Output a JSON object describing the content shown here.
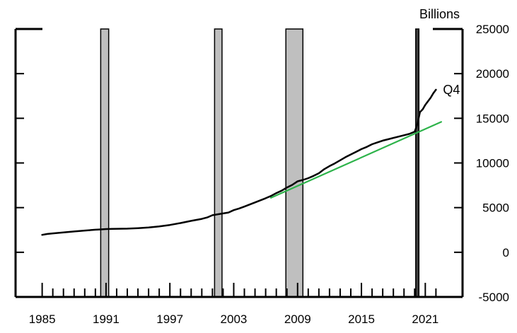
{
  "chart_data": {
    "type": "line",
    "title": "",
    "xlabel": "",
    "ylabel": "",
    "y_unit_label": "Billions",
    "x_range": [
      1982.5,
      2024.5
    ],
    "ylim": [
      -5000,
      25000
    ],
    "y_ticks": [
      -5000,
      0,
      5000,
      10000,
      15000,
      20000,
      25000
    ],
    "x_tick_labels": [
      "1985",
      "1991",
      "1997",
      "2003",
      "2009",
      "2015",
      "2021"
    ],
    "x_major_ticks": [
      1985,
      1991,
      1997,
      2003,
      2009,
      2015,
      2021
    ],
    "x_minor_ticks": [
      1986,
      1987,
      1988,
      1989,
      1990,
      1992,
      1993,
      1994,
      1995,
      1996,
      1998,
      1999,
      2000,
      2001,
      2002,
      2004,
      2005,
      2006,
      2007,
      2008,
      2010,
      2011,
      2012,
      2013,
      2014,
      2016,
      2017,
      2018,
      2019,
      2020,
      2022
    ],
    "grid": false,
    "legend": "none",
    "recession_shading": [
      {
        "start": 1990.5,
        "end": 1991.25,
        "color": "#bfbfbf"
      },
      {
        "start": 2001.2,
        "end": 2001.9,
        "color": "#bfbfbf"
      },
      {
        "start": 2007.9,
        "end": 2009.5,
        "color": "#bfbfbf"
      },
      {
        "start": 2020.1,
        "end": 2020.4,
        "color": "#404040"
      }
    ],
    "series": [
      {
        "name": "",
        "end_label": "Q4",
        "color": "#000000",
        "points": [
          [
            1985.0,
            1950
          ],
          [
            1985.5,
            2050
          ],
          [
            1986.0,
            2120
          ],
          [
            1987.0,
            2230
          ],
          [
            1988.0,
            2330
          ],
          [
            1989.0,
            2430
          ],
          [
            1990.0,
            2530
          ],
          [
            1990.5,
            2560
          ],
          [
            1991.0,
            2600
          ],
          [
            1991.5,
            2620
          ],
          [
            1992.0,
            2630
          ],
          [
            1993.0,
            2650
          ],
          [
            1994.0,
            2700
          ],
          [
            1995.0,
            2780
          ],
          [
            1996.0,
            2900
          ],
          [
            1997.0,
            3060
          ],
          [
            1998.0,
            3270
          ],
          [
            1999.0,
            3520
          ],
          [
            2000.0,
            3740
          ],
          [
            2000.5,
            3900
          ],
          [
            2001.0,
            4150
          ],
          [
            2001.5,
            4250
          ],
          [
            2002.0,
            4350
          ],
          [
            2002.5,
            4450
          ],
          [
            2003.0,
            4720
          ],
          [
            2003.5,
            4900
          ],
          [
            2004.0,
            5120
          ],
          [
            2005.0,
            5580
          ],
          [
            2006.0,
            6050
          ],
          [
            2006.5,
            6300
          ],
          [
            2007.0,
            6630
          ],
          [
            2007.5,
            6900
          ],
          [
            2008.0,
            7250
          ],
          [
            2008.5,
            7550
          ],
          [
            2009.0,
            7950
          ],
          [
            2009.5,
            8100
          ],
          [
            2010.0,
            8300
          ],
          [
            2010.5,
            8550
          ],
          [
            2011.0,
            8850
          ],
          [
            2011.5,
            9300
          ],
          [
            2012.0,
            9650
          ],
          [
            2012.5,
            9950
          ],
          [
            2013.0,
            10300
          ],
          [
            2013.5,
            10650
          ],
          [
            2014.0,
            10950
          ],
          [
            2014.5,
            11250
          ],
          [
            2015.0,
            11550
          ],
          [
            2015.5,
            11800
          ],
          [
            2016.0,
            12100
          ],
          [
            2016.5,
            12300
          ],
          [
            2017.0,
            12500
          ],
          [
            2017.5,
            12650
          ],
          [
            2018.0,
            12800
          ],
          [
            2018.5,
            12950
          ],
          [
            2019.0,
            13100
          ],
          [
            2019.5,
            13250
          ],
          [
            2020.0,
            13500
          ],
          [
            2020.25,
            14300
          ],
          [
            2020.5,
            15700
          ],
          [
            2020.75,
            16000
          ],
          [
            2021.0,
            16500
          ],
          [
            2021.25,
            16900
          ],
          [
            2021.5,
            17300
          ],
          [
            2021.75,
            17800
          ],
          [
            2022.0,
            18200
          ]
        ]
      },
      {
        "name": "",
        "color": "#2db34a",
        "points": [
          [
            2006.5,
            6100
          ],
          [
            2022.5,
            14600
          ]
        ]
      }
    ]
  }
}
